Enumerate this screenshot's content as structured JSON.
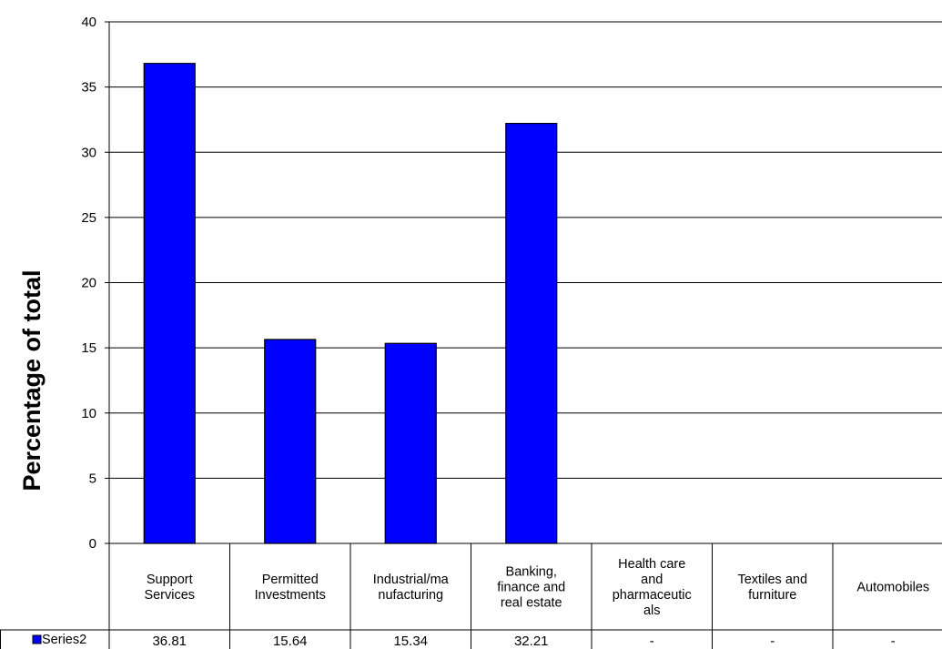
{
  "chart_data": {
    "type": "bar",
    "title": "",
    "ylabel": "Percentage of total",
    "xlabel": "",
    "ylim": [
      0,
      40
    ],
    "yticks": [
      0,
      5,
      10,
      15,
      20,
      25,
      30,
      35,
      40
    ],
    "grid": true,
    "bar_color": "#0000ff",
    "categories": [
      [
        "Support",
        "Services"
      ],
      [
        "Permitted",
        "Investments"
      ],
      [
        "Industrial/ma",
        "nufacturing"
      ],
      [
        "Banking,",
        "finance and",
        "real estate"
      ],
      [
        "Health care",
        "and",
        "pharmaceutic",
        "als"
      ],
      [
        "Textiles and",
        "furniture"
      ],
      [
        "Automobiles"
      ]
    ],
    "series": [
      {
        "name": "Series2",
        "values": [
          36.81,
          15.64,
          15.34,
          32.21,
          null,
          null,
          null
        ],
        "labels": [
          "36.81",
          "15.64",
          "15.34",
          "32.21",
          "-",
          "-",
          "-"
        ]
      }
    ]
  }
}
